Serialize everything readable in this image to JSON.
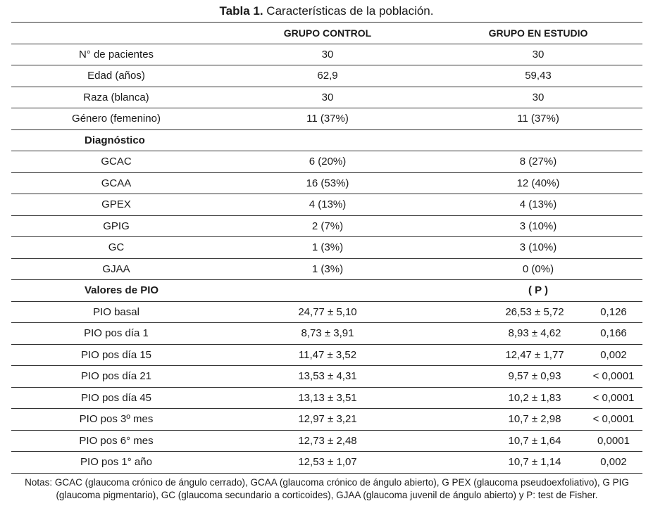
{
  "caption": {
    "label": "Tabla 1.",
    "text": "Características de la población."
  },
  "headers": [
    "",
    "GRUPO CONTROL",
    "GRUPO EN ESTUDIO"
  ],
  "rows_general": [
    [
      "N° de pacientes",
      "30",
      "30"
    ],
    [
      "Edad (años)",
      "62,9",
      "59,43"
    ],
    [
      "Raza (blanca)",
      "30",
      "30"
    ],
    [
      "Género (femenino)",
      "11 (37%)",
      "11 (37%)"
    ]
  ],
  "section_diag": "Diagnóstico",
  "rows_diag": [
    [
      "GCAC",
      "6 (20%)",
      "8 (27%)"
    ],
    [
      "GCAA",
      "16 (53%)",
      "12 (40%)"
    ],
    [
      "GPEX",
      "4 (13%)",
      "4 (13%)"
    ],
    [
      "GPIG",
      "2 (7%)",
      "3 (10%)"
    ],
    [
      "GC",
      "1 (3%)",
      "3 (10%)"
    ],
    [
      "GJAA",
      "1 (3%)",
      "0 (0%)"
    ]
  ],
  "section_pio": "Valores de PIO",
  "pio_p_header": "( P )",
  "rows_pio": [
    [
      "PIO basal",
      "24,77 ± 5,10",
      "26,53 ± 5,72",
      "0,126"
    ],
    [
      "PIO pos día 1",
      "8,73 ± 3,91",
      "8,93 ± 4,62",
      "0,166"
    ],
    [
      "PIO pos día 15",
      "11,47 ± 3,52",
      "12,47 ± 1,77",
      "0,002"
    ],
    [
      "PIO pos día 21",
      "13,53 ± 4,31",
      "9,57 ± 0,93",
      "< 0,0001"
    ],
    [
      "PIO pos día 45",
      "13,13 ± 3,51",
      "10,2 ± 1,83",
      "< 0,0001"
    ],
    [
      "PIO pos 3º mes",
      "12,97 ± 3,21",
      "10,7 ± 2,98",
      "< 0,0001"
    ],
    [
      "PIO pos 6° mes",
      "12,73 ± 2,48",
      "10,7 ± 1,64",
      "0,0001"
    ],
    [
      "PIO pos 1° año",
      "12,53 ± 1,07",
      "10,7 ± 1,14",
      "0,002"
    ]
  ],
  "notes": "Notas: GCAC (glaucoma crónico de ángulo cerrado), GCAA (glaucoma crónico de ángulo abierto), G PEX (glaucoma pseudoexfoliativo), G PIG (glaucoma pigmentario), GC (glaucoma secundario a corticoides), GJAA (glaucoma juvenil de ángulo abierto) y P: test de Fisher."
}
